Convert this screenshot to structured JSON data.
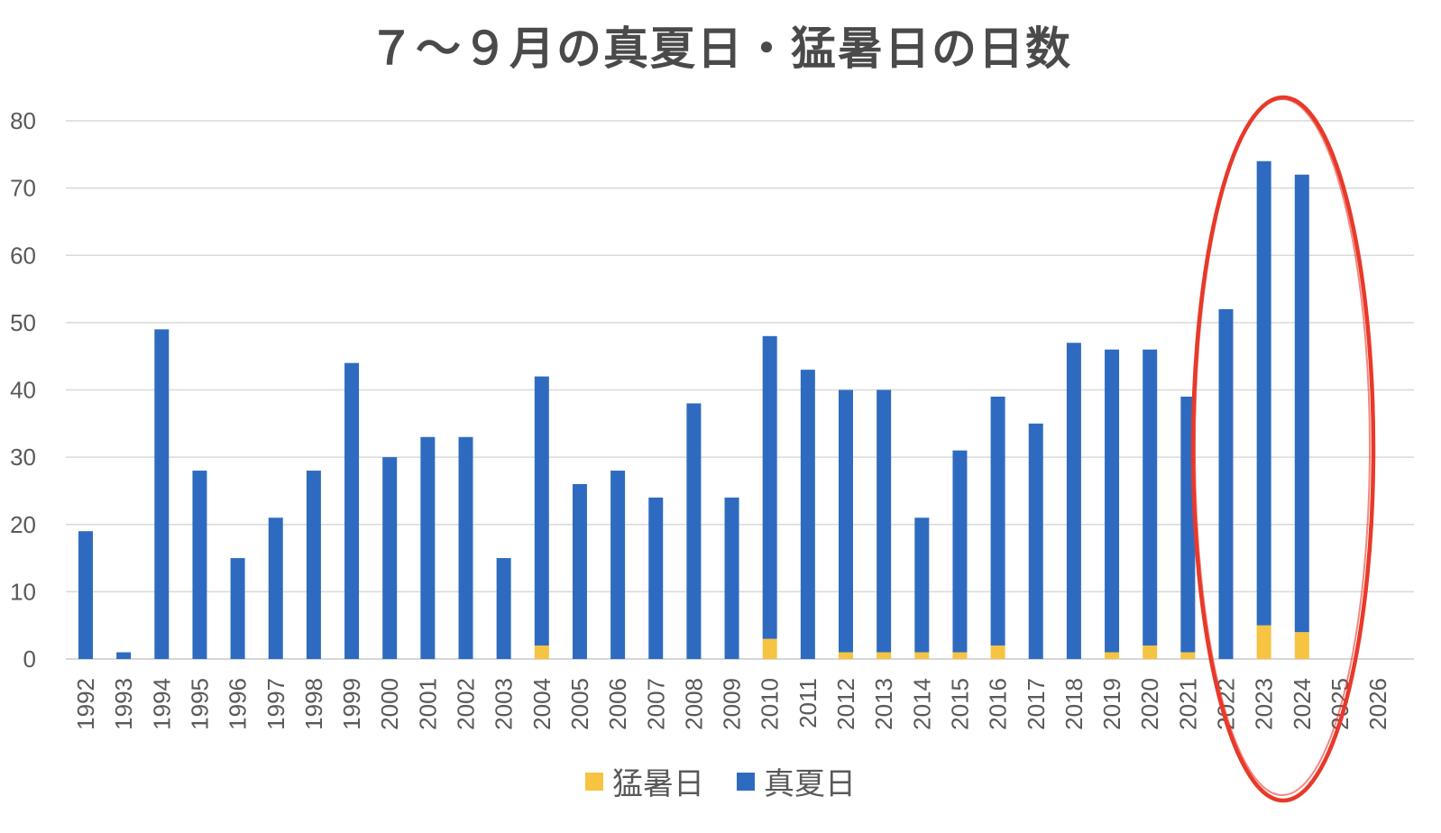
{
  "chart_data": {
    "type": "bar",
    "stacked": true,
    "title": "７～９月の真夏日・猛暑日の日数",
    "ylim": [
      0,
      80
    ],
    "yticks": [
      0,
      10,
      20,
      30,
      40,
      50,
      60,
      70,
      80
    ],
    "grid": true,
    "legend_position": "bottom",
    "categories": [
      "1992",
      "1993",
      "1994",
      "1995",
      "1996",
      "1997",
      "1998",
      "1999",
      "2000",
      "2001",
      "2002",
      "2003",
      "2004",
      "2005",
      "2006",
      "2007",
      "2008",
      "2009",
      "2010",
      "2011",
      "2012",
      "2013",
      "2014",
      "2015",
      "2016",
      "2017",
      "2018",
      "2019",
      "2020",
      "2021",
      "2022",
      "2023",
      "2024",
      "2025",
      "2026"
    ],
    "series": [
      {
        "name": "猛暑日",
        "color": "#f6c342",
        "values": [
          0,
          0,
          0,
          0,
          0,
          0,
          0,
          0,
          0,
          0,
          0,
          0,
          2,
          0,
          0,
          0,
          0,
          0,
          3,
          0,
          1,
          1,
          1,
          1,
          2,
          0,
          0,
          1,
          2,
          1,
          0,
          5,
          4,
          0,
          0
        ]
      },
      {
        "name": "真夏日",
        "color": "#2e6bc0",
        "values": [
          19,
          1,
          49,
          28,
          15,
          21,
          28,
          44,
          30,
          33,
          33,
          15,
          40,
          26,
          28,
          24,
          38,
          24,
          45,
          43,
          39,
          39,
          20,
          30,
          37,
          35,
          47,
          45,
          44,
          38,
          52,
          69,
          68,
          0,
          0
        ]
      }
    ],
    "annotation": {
      "type": "ellipse",
      "color": "#e8392a",
      "highlight_categories": [
        "2022",
        "2023",
        "2024"
      ]
    }
  }
}
